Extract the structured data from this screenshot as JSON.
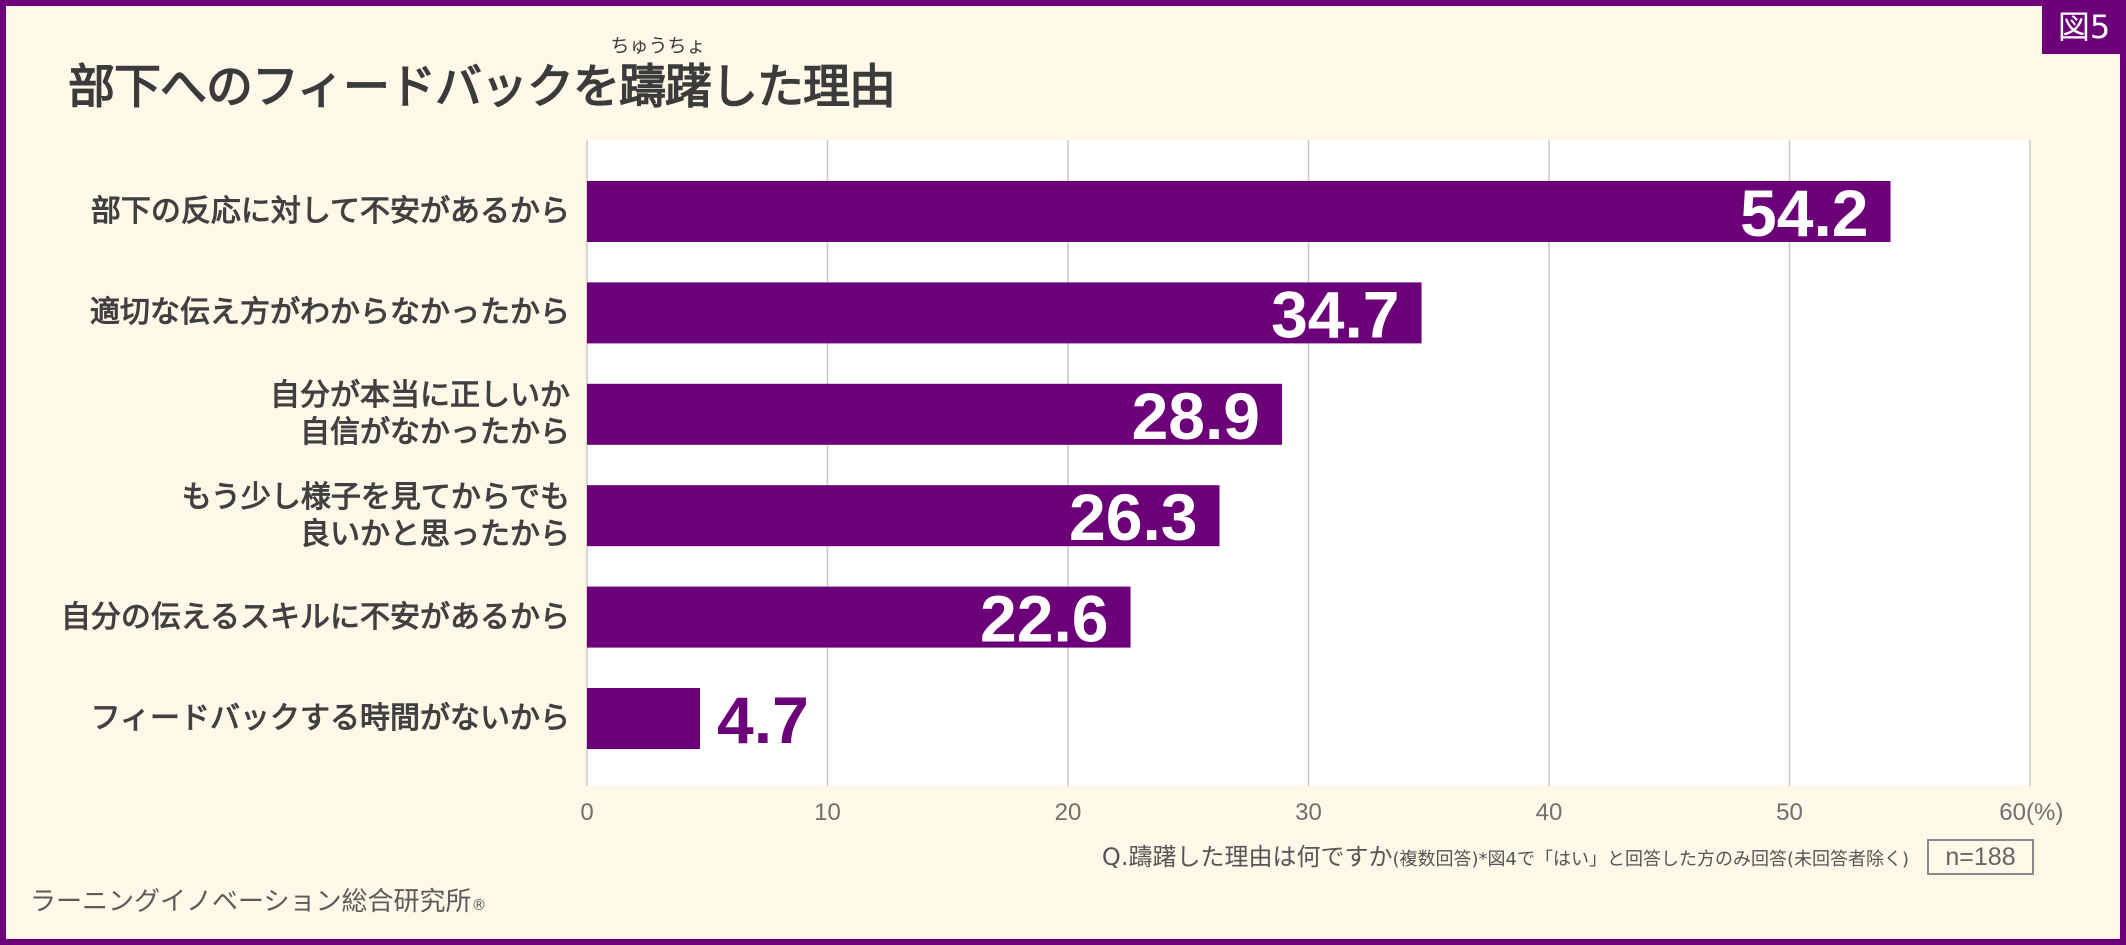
{
  "figure_badge": "図5",
  "chart_data": {
    "type": "bar",
    "orientation": "horizontal",
    "title": "部下へのフィードバックを躊躇した理由",
    "title_furigana": "ちゅうちょ",
    "categories": [
      "部下の反応に対して不安があるから",
      "適切な伝え方がわからなかったから",
      "自分が本当に正しいか\n自信がなかったから",
      "もう少し様子を見てからでも\n良いかと思ったから",
      "自分の伝えるスキルに不安があるから",
      "フィードバックする時間がないから"
    ],
    "values": [
      54.2,
      34.7,
      28.9,
      26.3,
      22.6,
      4.7
    ],
    "xlim": [
      0,
      60
    ],
    "xticks": [
      0,
      10,
      20,
      30,
      40,
      50,
      60
    ],
    "xunit": "(%)",
    "grid": "vertical",
    "data_labels": true,
    "colors": {
      "bar": "#6c0079",
      "label_inside": "#ffffff",
      "label_outside": "#6c0079",
      "grid": "#c9c9c9",
      "plot_background": "#ffffff"
    }
  },
  "footer": {
    "question": "Q.躊躇した理由は何ですか",
    "note": "(複数回答)*図4で「はい」と回答した方のみ回答(未回答者除く)",
    "sample_size": "n=188"
  },
  "credit": {
    "name": "ラーニングイノベーション総合研究所",
    "mark": "®"
  },
  "theme": {
    "accent": "#6c0079",
    "background": "#fdf8e7",
    "text": "#3b3b3b"
  }
}
